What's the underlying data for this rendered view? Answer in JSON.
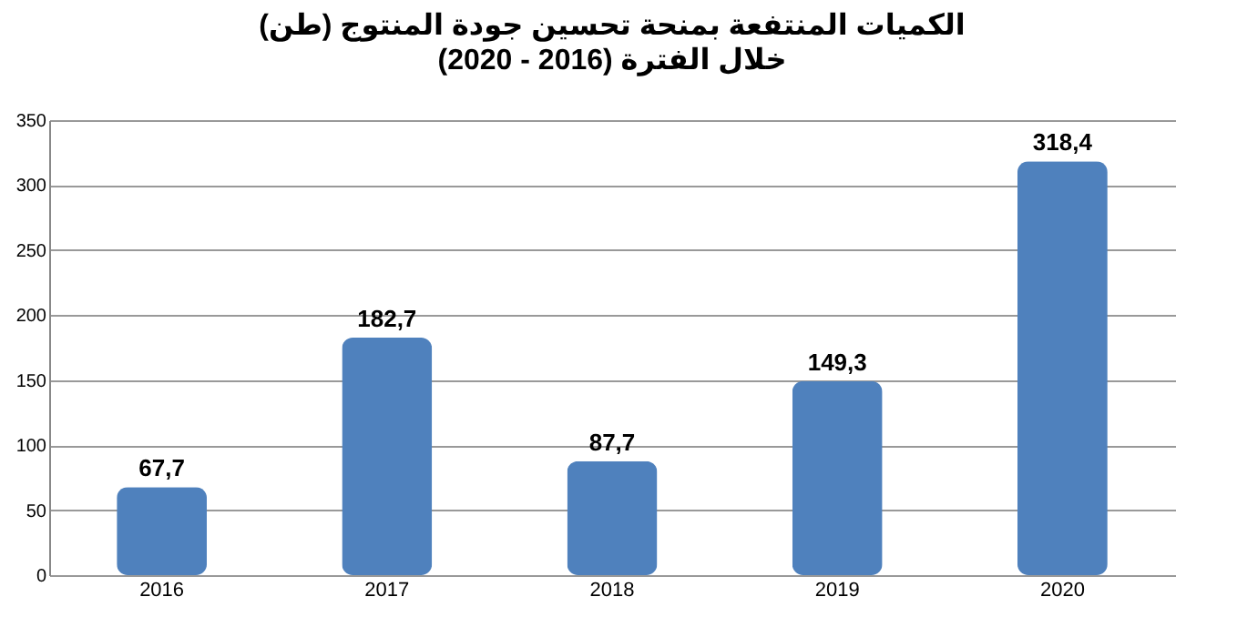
{
  "chart_data": {
    "type": "bar",
    "title": "الكميات المنتفعة بمنحة تحسين جودة المنتوج (طن)",
    "subtitle": "خلال الفترة (2016 - 2020)",
    "categories": [
      "2016",
      "2017",
      "2018",
      "2019",
      "2020"
    ],
    "values": [
      67.7,
      182.7,
      87.7,
      149.3,
      318.4
    ],
    "value_labels": [
      "67,7",
      "182,7",
      "87,7",
      "149,3",
      "318,4"
    ],
    "color": "#4f81bd",
    "ylim": [
      0,
      350
    ],
    "yticks": [
      0,
      50,
      100,
      150,
      200,
      250,
      300,
      350
    ],
    "grid": "y"
  }
}
